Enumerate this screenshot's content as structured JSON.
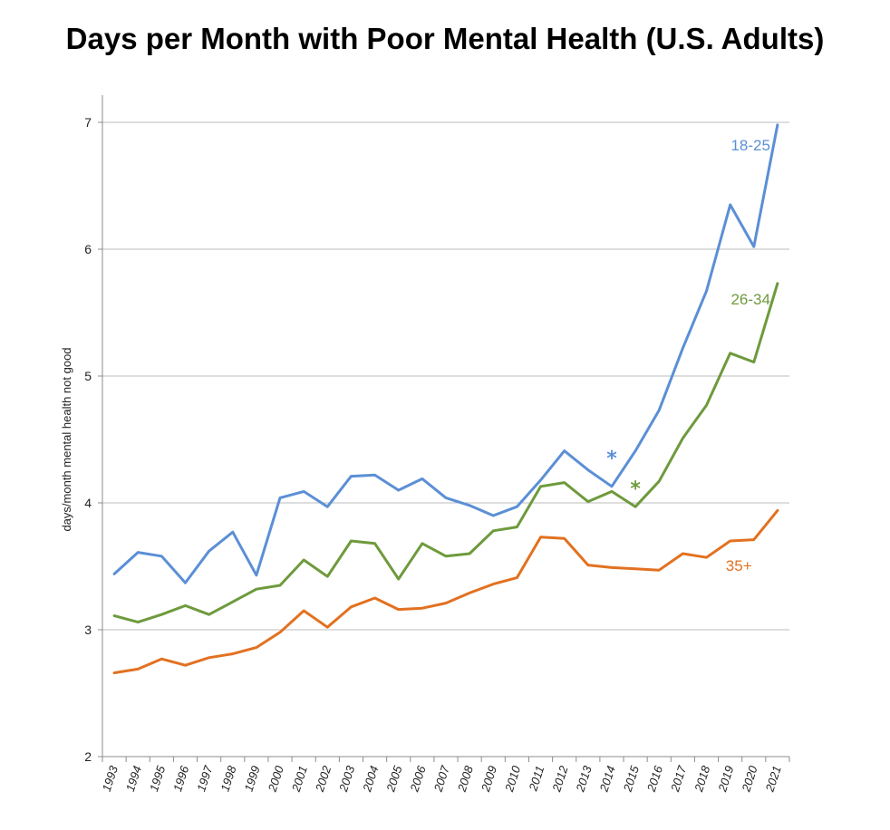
{
  "chart_data": {
    "type": "line",
    "title": "Days per Month with Poor Mental Health (U.S. Adults)",
    "xlabel": "",
    "ylabel": "days/month mental health not good",
    "ylim": [
      2,
      7
    ],
    "yticks": [
      "2",
      "3",
      "4",
      "5",
      "6",
      "7"
    ],
    "grid": "horizontal",
    "x": [
      "1993",
      "1994",
      "1995",
      "1996",
      "1997",
      "1998",
      "1999",
      "2000",
      "2001",
      "2002",
      "2003",
      "2004",
      "2005",
      "2006",
      "2007",
      "2008",
      "2009",
      "2010",
      "2011",
      "2012",
      "2013",
      "2014",
      "2015",
      "2016",
      "2017",
      "2018",
      "2019",
      "2020",
      "2021"
    ],
    "series": [
      {
        "name": "18-25",
        "color": "#5b8fd6",
        "values": [
          3.44,
          3.61,
          3.58,
          3.37,
          3.62,
          3.77,
          3.43,
          4.04,
          4.09,
          3.97,
          4.21,
          4.22,
          4.1,
          4.19,
          4.04,
          3.98,
          3.9,
          3.97,
          4.18,
          4.41,
          4.26,
          4.13,
          4.41,
          4.73,
          5.22,
          5.67,
          6.35,
          6.02,
          6.98
        ]
      },
      {
        "name": "26-34",
        "color": "#6e9a3c",
        "values": [
          3.11,
          3.06,
          3.12,
          3.19,
          3.12,
          3.22,
          3.32,
          3.35,
          3.55,
          3.42,
          3.7,
          3.68,
          3.4,
          3.68,
          3.58,
          3.6,
          3.78,
          3.81,
          4.13,
          4.16,
          4.01,
          4.09,
          3.97,
          4.17,
          4.51,
          4.77,
          5.18,
          5.11,
          5.73
        ]
      },
      {
        "name": "35+",
        "color": "#e27120",
        "values": [
          2.66,
          2.69,
          2.77,
          2.72,
          2.78,
          2.81,
          2.86,
          2.98,
          3.15,
          3.02,
          3.18,
          3.25,
          3.16,
          3.17,
          3.21,
          3.29,
          3.36,
          3.41,
          3.73,
          3.72,
          3.51,
          3.49,
          3.48,
          3.47,
          3.6,
          3.57,
          3.7,
          3.71,
          3.94
        ]
      }
    ],
    "annotations": [
      {
        "text": "*",
        "color": "#5b8fd6",
        "x": "2014",
        "y": 4.38
      },
      {
        "text": "*",
        "color": "#6e9a3c",
        "x": "2015",
        "y": 4.14
      }
    ]
  }
}
